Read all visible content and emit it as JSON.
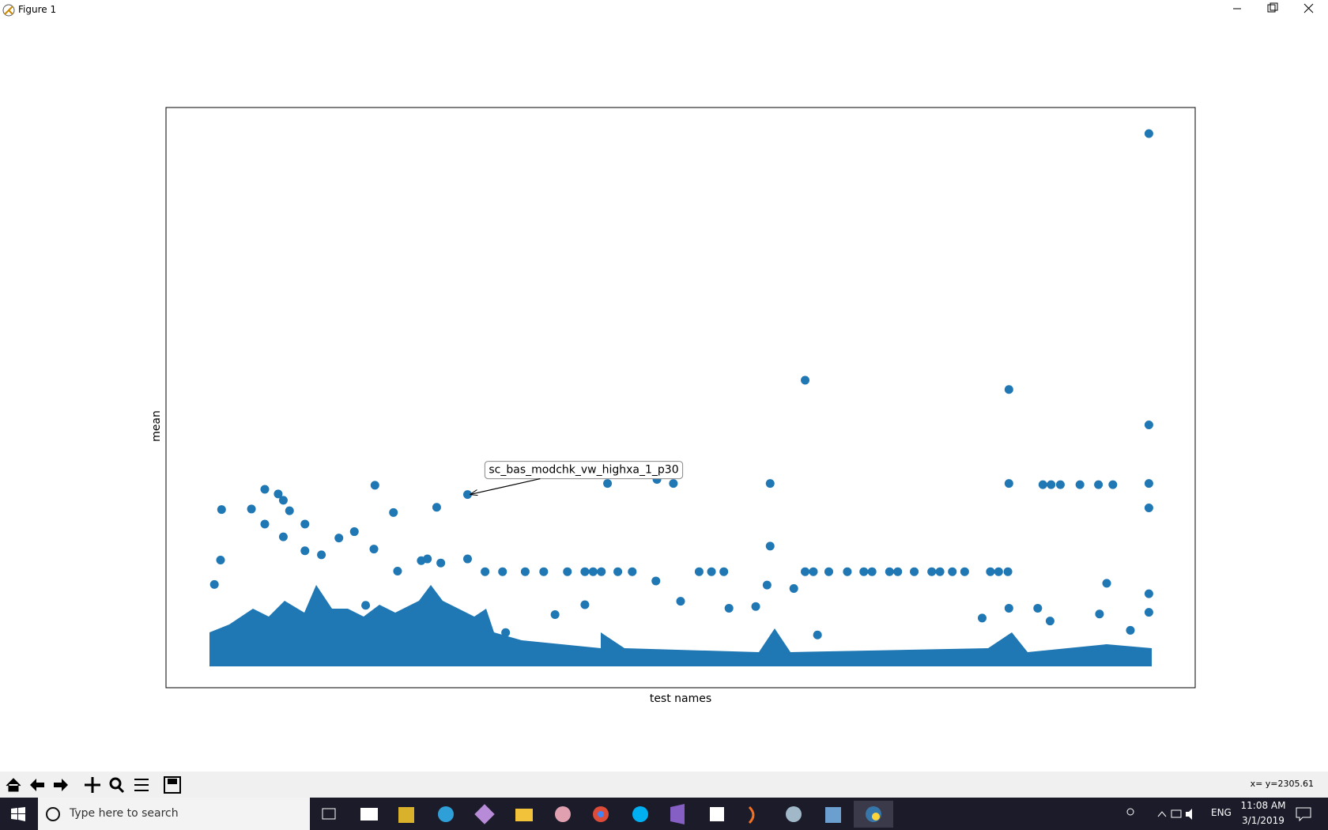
{
  "window": {
    "title": "Figure 1"
  },
  "chart_data": {
    "type": "scatter",
    "xlabel": "test names",
    "ylabel": "mean",
    "color": "#1f77b4",
    "xlim": [
      0,
      100
    ],
    "ylim": [
      0,
      100
    ],
    "x": [
      95.5,
      62.1,
      81.9,
      95.5,
      95.5,
      95.5,
      81.9,
      85.2,
      86.0,
      86.9,
      88.8,
      90.6,
      92.0,
      58.7,
      58.7,
      42.9,
      47.7,
      49.3,
      29.3,
      26.3,
      22.1,
      20.3,
      18.3,
      5.4,
      9.6,
      8.3,
      10.9,
      11.4,
      12.0,
      13.5,
      11.4,
      5.3,
      9.6,
      16.8,
      20.2,
      22.5,
      31.0,
      32.7,
      34.9,
      36.7,
      39.0,
      40.7,
      41.5,
      42.3,
      43.9,
      45.3,
      51.8,
      53.0,
      54.2,
      62.1,
      62.9,
      64.4,
      66.2,
      67.8,
      68.6,
      70.3,
      71.1,
      72.7,
      74.4,
      75.2,
      76.4,
      77.6,
      80.1,
      80.9,
      81.8,
      50.0,
      47.6,
      91.4,
      95.5,
      95.5,
      81.9,
      61.0,
      58.4,
      37.8,
      40.7,
      54.7,
      57.3,
      79.3,
      84.7,
      85.9,
      93.7,
      90.7,
      33.0,
      63.3,
      24.8,
      25.4,
      26.7,
      29.3,
      13.5,
      15.1,
      4.7,
      19.4
    ],
    "y": [
      95.5,
      53.0,
      51.4,
      45.3,
      35.2,
      31.0,
      35.2,
      35.0,
      35.0,
      35.0,
      35.0,
      35.0,
      35.0,
      35.2,
      24.4,
      35.2,
      35.9,
      35.2,
      33.3,
      31.1,
      30.2,
      34.9,
      26.9,
      30.7,
      34.2,
      30.8,
      33.4,
      32.3,
      30.5,
      28.2,
      26.0,
      22.0,
      28.2,
      25.8,
      23.9,
      20.1,
      20.0,
      20.0,
      20.0,
      20.0,
      20.0,
      20.0,
      20.0,
      20.0,
      20.0,
      20.0,
      20.0,
      20.0,
      20.0,
      20.0,
      20.0,
      20.0,
      20.0,
      20.0,
      20.0,
      20.0,
      20.0,
      20.0,
      20.0,
      20.0,
      20.0,
      20.0,
      20.0,
      20.0,
      20.0,
      14.9,
      18.4,
      18.0,
      16.2,
      13.0,
      13.7,
      17.1,
      17.7,
      12.6,
      14.3,
      13.7,
      14.0,
      12.0,
      13.7,
      11.5,
      9.9,
      12.7,
      9.5,
      9.1,
      21.9,
      22.2,
      21.5,
      22.2,
      23.6,
      22.9,
      17.8,
      14.2
    ],
    "annotation": {
      "text": "sc_bas_modchk_vw_highxa_1_p30",
      "x": 29.3,
      "y": 33.3
    }
  },
  "status": "x= y=2305.61",
  "taskbar": {
    "search": "Type here to search",
    "language": "ENG",
    "time": "11:08 AM",
    "date": "3/1/2019"
  }
}
